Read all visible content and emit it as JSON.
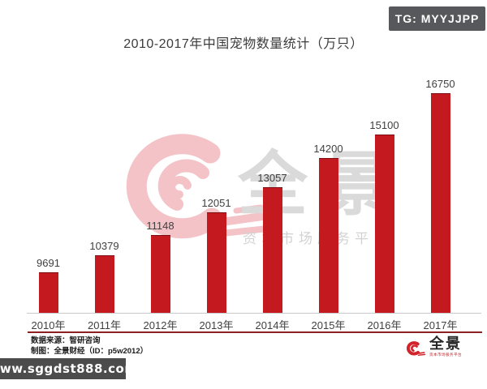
{
  "badge": {
    "label": "TG: MYYJJPP"
  },
  "title": "2010-2017年中国宠物数量统计（万只）",
  "chart_data": {
    "type": "bar",
    "title": "2010-2017年中国宠物数量统计（万只）",
    "categories": [
      "2010年",
      "2011年",
      "2012年",
      "2013年",
      "2014年",
      "2015年",
      "2016年",
      "2017年"
    ],
    "values": [
      9691,
      10379,
      11148,
      12051,
      13057,
      14200,
      15100,
      16750
    ],
    "unit": "万只",
    "xlabel": "",
    "ylabel": "",
    "ylim": [
      8100,
      16900
    ],
    "grid": false,
    "legend": "none",
    "bar_color": "#c4191f",
    "value_labels_shown": true
  },
  "watermark": {
    "brand_text": "全景",
    "tagline": "资本市场服务平台",
    "swirl_color": "#f4c3c7",
    "text_color": "#dadada"
  },
  "footer": {
    "source": "数据来源：智研咨询",
    "credit": "制图：全景财经（ID：p5w2012）",
    "logo_text": "全景",
    "logo_tagline": "资本市场服务平台",
    "logo_color": "#d2232a"
  },
  "overlay_banner": {
    "text": "www.sggdst888.com",
    "bg": "#4c4c4c"
  }
}
